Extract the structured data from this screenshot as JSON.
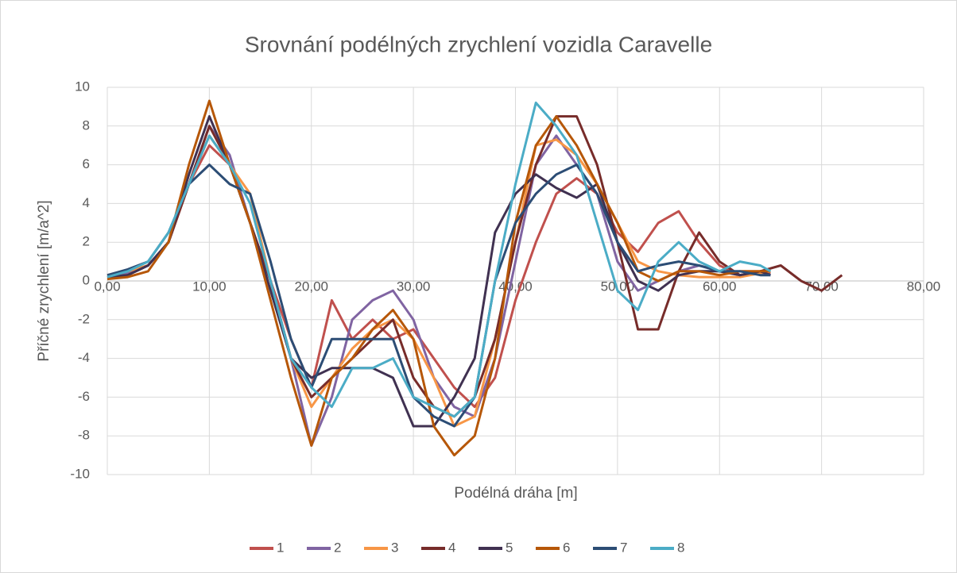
{
  "chart_data": {
    "type": "line",
    "title": "Srovnání podélných zrychlení vozidla Caravelle",
    "x_label": "Podélná dráha [m]",
    "y_label": "Příčné zrychlení [m/a^2]",
    "xlim": [
      0,
      80
    ],
    "xticks": [
      {
        "value": 0,
        "label": "0,00"
      },
      {
        "value": 10,
        "label": "10,00"
      },
      {
        "value": 20,
        "label": "20,00"
      },
      {
        "value": 30,
        "label": "30,00"
      },
      {
        "value": 40,
        "label": "40,00"
      },
      {
        "value": 50,
        "label": "50,00"
      },
      {
        "value": 60,
        "label": "60,00"
      },
      {
        "value": 70,
        "label": "70,00"
      },
      {
        "value": 80,
        "label": "80,00"
      }
    ],
    "ylim": [
      -10,
      10
    ],
    "yticks": [
      -10,
      -8,
      -6,
      -4,
      -2,
      0,
      2,
      4,
      6,
      8,
      10
    ],
    "grid": true,
    "legend": "bottom",
    "series": [
      {
        "name": "1",
        "color": "#c0504d",
        "x": [
          0,
          2,
          4,
          6,
          8,
          10,
          12,
          14,
          16,
          18,
          20,
          22,
          24,
          26,
          28,
          30,
          32,
          34,
          36,
          38,
          40,
          42,
          44,
          46,
          48,
          50,
          52,
          54,
          56,
          58,
          60,
          62,
          64,
          65
        ],
        "values": [
          0.3,
          0.5,
          0.8,
          2,
          5,
          7,
          6,
          3,
          0,
          -3,
          -5.5,
          -1,
          -3,
          -2,
          -3,
          -2.5,
          -4,
          -5.5,
          -6.5,
          -5,
          -1,
          2,
          4.5,
          5.3,
          4.5,
          2.5,
          1.5,
          3,
          3.6,
          2,
          0.8,
          0.3,
          0.5,
          0.4
        ]
      },
      {
        "name": "2",
        "color": "#8064a2",
        "x": [
          0,
          2,
          4,
          6,
          8,
          10,
          12,
          14,
          16,
          18,
          20,
          22,
          24,
          26,
          28,
          30,
          32,
          34,
          36,
          38,
          40,
          42,
          44,
          46,
          48,
          50,
          52,
          54,
          56,
          58,
          60,
          62,
          64,
          65
        ],
        "values": [
          0.2,
          0.4,
          0.8,
          2,
          5,
          8,
          6.5,
          3,
          0,
          -4,
          -8.5,
          -6,
          -2,
          -1,
          -0.5,
          -2,
          -5,
          -6.5,
          -7,
          -4,
          1,
          6,
          7.5,
          6,
          4.5,
          1,
          -0.5,
          0,
          0.5,
          0.8,
          0.5,
          0.3,
          0.4,
          0.3
        ]
      },
      {
        "name": "3",
        "color": "#f79646",
        "x": [
          0,
          2,
          4,
          6,
          8,
          10,
          12,
          14,
          16,
          18,
          20,
          22,
          24,
          26,
          28,
          30,
          32,
          34,
          36,
          38,
          40,
          42,
          44,
          46,
          48,
          50,
          52,
          54,
          56,
          58,
          60,
          62,
          64,
          65
        ],
        "values": [
          0.3,
          0.5,
          0.8,
          2,
          5,
          7.5,
          6,
          4.5,
          0,
          -4,
          -6.5,
          -5,
          -3.5,
          -2.5,
          -2,
          -3,
          -5,
          -7.5,
          -7,
          -3,
          2,
          7,
          7.3,
          6.5,
          5,
          3,
          1,
          0.5,
          0.3,
          0.2,
          0.2,
          0.2,
          0.4,
          0.5
        ]
      },
      {
        "name": "4",
        "color": "#772c2a",
        "x": [
          0,
          2,
          4,
          6,
          8,
          10,
          12,
          14,
          16,
          18,
          20,
          22,
          24,
          26,
          28,
          30,
          32,
          34,
          36,
          38,
          40,
          42,
          44,
          46,
          48,
          50,
          52,
          54,
          56,
          58,
          60,
          62,
          64,
          66,
          68,
          70,
          72
        ],
        "values": [
          0.2,
          0.3,
          0.8,
          2,
          5,
          8,
          6,
          3,
          0,
          -4,
          -6,
          -5,
          -4,
          -3,
          -2,
          -5,
          -6.5,
          -7,
          -6,
          -3,
          2,
          6,
          8.5,
          8.5,
          6,
          2,
          -2.5,
          -2.5,
          0.5,
          2.5,
          1,
          0.3,
          0.5,
          0.8,
          0,
          -0.5,
          0.3
        ]
      },
      {
        "name": "5",
        "color": "#403151",
        "x": [
          0,
          2,
          4,
          6,
          8,
          10,
          12,
          14,
          16,
          18,
          20,
          22,
          24,
          26,
          28,
          30,
          32,
          34,
          36,
          38,
          40,
          42,
          44,
          46,
          48,
          50,
          52,
          54,
          56,
          58,
          60,
          62,
          64,
          65
        ],
        "values": [
          0.2,
          0.3,
          0.8,
          2,
          5.5,
          8.5,
          6,
          3,
          -0.5,
          -4,
          -5,
          -4.5,
          -4.5,
          -4.5,
          -5,
          -7.5,
          -7.5,
          -6,
          -4,
          2.5,
          4.5,
          5.5,
          4.8,
          4.3,
          5,
          2,
          0,
          -0.5,
          0.3,
          0.5,
          0.5,
          0.3,
          0.5,
          0.3
        ]
      },
      {
        "name": "6",
        "color": "#b65708",
        "x": [
          0,
          2,
          4,
          6,
          8,
          10,
          12,
          14,
          16,
          18,
          20,
          22,
          24,
          26,
          28,
          30,
          32,
          34,
          36,
          38,
          40,
          42,
          44,
          46,
          48,
          50,
          52,
          54,
          56,
          58,
          60,
          62,
          64,
          65
        ],
        "values": [
          0.1,
          0.2,
          0.5,
          2,
          6,
          9.3,
          6,
          3,
          -1,
          -5,
          -8.5,
          -5,
          -4,
          -2.5,
          -1.5,
          -3,
          -7.5,
          -9,
          -8,
          -4,
          3,
          7,
          8.5,
          7,
          5,
          3,
          0.5,
          0,
          0.5,
          0.5,
          0.3,
          0.5,
          0.5,
          0.5
        ]
      },
      {
        "name": "7",
        "color": "#2c4d75",
        "x": [
          0,
          2,
          4,
          6,
          8,
          10,
          12,
          14,
          16,
          18,
          20,
          22,
          24,
          26,
          28,
          30,
          32,
          34,
          36,
          38,
          40,
          42,
          44,
          46,
          48,
          50,
          52,
          54,
          56,
          58,
          60,
          62,
          64,
          65
        ],
        "values": [
          0.3,
          0.6,
          1,
          2.5,
          5,
          6,
          5,
          4.5,
          1,
          -3,
          -5.5,
          -3,
          -3,
          -3,
          -3,
          -6,
          -7,
          -7.5,
          -6,
          0,
          3,
          4.5,
          5.5,
          6,
          4.5,
          2,
          0.5,
          0.8,
          1,
          0.8,
          0.5,
          0.5,
          0.3,
          0.3
        ]
      },
      {
        "name": "8",
        "color": "#4bacc6",
        "x": [
          0,
          2,
          4,
          6,
          8,
          10,
          12,
          14,
          16,
          18,
          20,
          22,
          24,
          26,
          28,
          30,
          32,
          34,
          36,
          38,
          40,
          42,
          44,
          46,
          48,
          50,
          52,
          54,
          56,
          58,
          60,
          62,
          64,
          65
        ],
        "values": [
          0.2,
          0.5,
          1,
          2.5,
          5,
          7.5,
          6,
          4,
          0,
          -4,
          -5.5,
          -6.5,
          -4.5,
          -4.5,
          -4,
          -6,
          -6.5,
          -7,
          -6,
          0,
          5,
          9.2,
          8,
          6.5,
          3,
          -0.5,
          -1.5,
          1,
          2,
          1,
          0.5,
          1,
          0.8,
          0.5
        ]
      }
    ]
  }
}
